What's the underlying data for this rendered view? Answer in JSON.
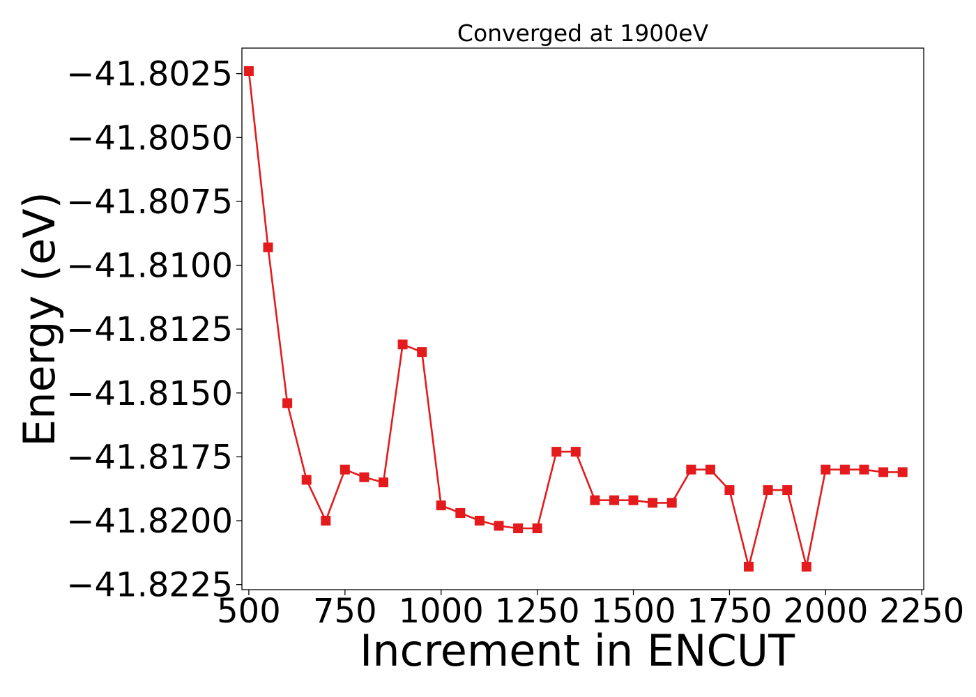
{
  "chart_data": {
    "type": "line",
    "title": "Converged at 1900eV",
    "xlabel": "Increment in ENCUT",
    "ylabel": "Energy (eV)",
    "xlim": [
      482,
      2255
    ],
    "ylim": [
      -41.8227,
      -41.8015
    ],
    "xticks": [
      500,
      750,
      1000,
      1250,
      1500,
      1750,
      2000,
      2250
    ],
    "xtick_labels": [
      "500",
      "750",
      "1000",
      "1250",
      "1500",
      "1750",
      "2000",
      "2250"
    ],
    "yticks": [
      -41.8025,
      -41.805,
      -41.8075,
      -41.81,
      -41.8125,
      -41.815,
      -41.8175,
      -41.82,
      -41.8225
    ],
    "ytick_labels": [
      "−41.8025",
      "−41.8050",
      "−41.8075",
      "−41.8100",
      "−41.8125",
      "−41.8150",
      "−41.8175",
      "−41.8200",
      "−41.8225"
    ],
    "grid": false,
    "color": "#e41a1c",
    "marker": "square",
    "series": [
      {
        "x": [
          500,
          550,
          600,
          650,
          700,
          750,
          800,
          850,
          900,
          950,
          1000,
          1050,
          1100,
          1150,
          1200,
          1250,
          1300,
          1350,
          1400,
          1450,
          1500,
          1550,
          1600,
          1650,
          1700,
          1750,
          1800,
          1850,
          1900,
          1950,
          2000,
          2050,
          2100,
          2150,
          2200
        ],
        "y": [
          -41.8024,
          -41.8093,
          -41.8154,
          -41.8184,
          -41.82,
          -41.818,
          -41.8183,
          -41.8185,
          -41.8131,
          -41.8134,
          -41.8194,
          -41.8197,
          -41.82,
          -41.8202,
          -41.8203,
          -41.8203,
          -41.8173,
          -41.8173,
          -41.8192,
          -41.8192,
          -41.8192,
          -41.8193,
          -41.8193,
          -41.818,
          -41.818,
          -41.8188,
          -41.8218,
          -41.8188,
          -41.8188,
          -41.8218,
          -41.818,
          -41.818,
          -41.818,
          -41.8181,
          -41.8181
        ]
      }
    ]
  }
}
